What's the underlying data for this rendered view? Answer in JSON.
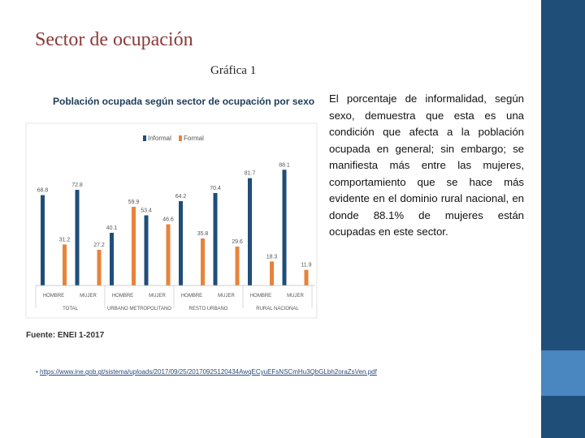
{
  "slide": {
    "title": "Sector de ocupación",
    "graph_label": "Gráfica 1",
    "footnote_url": "https://www.ine.gob.gt/sistema/uploads/2017/09/25/20170925120434AwqECyuEFsNSCmHu3QbGLbh2oraZsVen.pdf"
  },
  "chart_data": {
    "type": "bar",
    "title": "Población ocupada según sector de ocupación por sexo",
    "categories": [
      "HOMBRE",
      "MUJER",
      "HOMBRE",
      "MUJER",
      "HOMBRE",
      "MUJER",
      "HOMBRE",
      "MUJER"
    ],
    "groups": [
      "TOTAL",
      "URBANO METROPOLITANO",
      "RESTO URBANO",
      "RURAL NACIONAL"
    ],
    "series": [
      {
        "name": "Informal",
        "color": "#1f4e79",
        "values": [
          68.8,
          72.8,
          40.1,
          53.4,
          64.2,
          70.4,
          81.7,
          88.1
        ]
      },
      {
        "name": "Formal",
        "color": "#e8833a",
        "values": [
          31.2,
          27.2,
          59.9,
          46.6,
          35.8,
          29.6,
          18.3,
          11.9
        ]
      }
    ],
    "value_labels": {
      "Informal": [
        "68.8",
        "72.8",
        "40.1",
        "53.4",
        "64.2",
        "70.4",
        "81.7",
        "88.1"
      ],
      "Formal": [
        "31.2",
        "27.2",
        "59.9",
        "46.6",
        "35.8",
        "29.6",
        "18.3",
        "11.9"
      ]
    },
    "ylim": [
      0,
      100
    ],
    "grid": false,
    "legend": "top",
    "source": "Fuente: ENEI 1-2017"
  },
  "description": "El porcentaje de informalidad, según sexo, demuestra que esta es una condición que afecta a la población ocupada en general; sin embargo; se manifiesta más entre las mujeres, comportamiento que se hace más evidente en el dominio rural nacional, en donde 88.1% de mujeres están ocupadas en este sector."
}
